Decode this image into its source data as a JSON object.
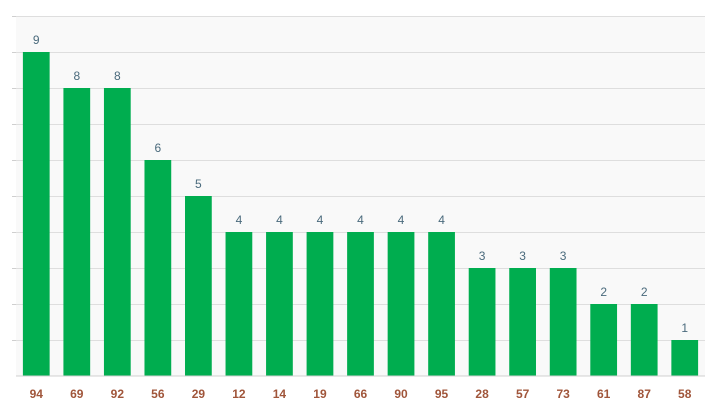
{
  "chart_data": {
    "type": "bar",
    "categories": [
      "94",
      "69",
      "92",
      "56",
      "29",
      "12",
      "14",
      "19",
      "66",
      "90",
      "95",
      "28",
      "57",
      "73",
      "61",
      "87",
      "58"
    ],
    "values": [
      9,
      8,
      8,
      6,
      5,
      4,
      4,
      4,
      4,
      4,
      4,
      3,
      3,
      3,
      2,
      2,
      1
    ],
    "ylim": [
      0,
      10
    ],
    "grid": true,
    "colors": {
      "bar": "#00ad4f",
      "value_label": "#4a6a7c",
      "category_label": "#a0553a",
      "background": "#f9f9f9",
      "grid": "#dedede"
    }
  }
}
